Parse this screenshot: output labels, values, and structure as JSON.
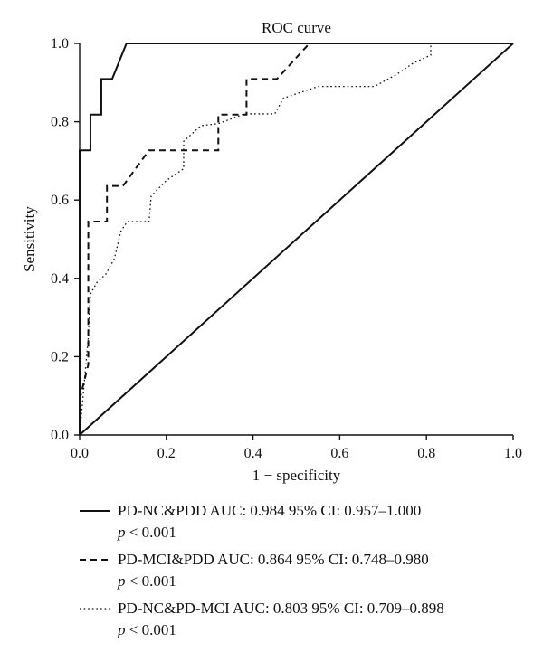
{
  "chart_data": {
    "type": "line",
    "title": "ROC curve",
    "xlabel": "1 − specificity",
    "ylabel": "Sensitivity",
    "xlim": [
      0.0,
      1.0
    ],
    "ylim": [
      0.0,
      1.0
    ],
    "x_ticks": [
      "0.0",
      "0.2",
      "0.4",
      "0.6",
      "0.8",
      "1.0"
    ],
    "y_ticks": [
      "0.0",
      "0.2",
      "0.4",
      "0.6",
      "0.8",
      "1.0"
    ],
    "grid": false,
    "legend_position": "bottom",
    "series": [
      {
        "name": "PD-NC&PDD AUC: 0.984 95% CI: 0.957–1.000",
        "note": "p < 0.001",
        "style": "solid",
        "x": [
          0.0,
          0.0,
          0.025,
          0.025,
          0.05,
          0.05,
          0.075,
          0.108,
          1.0
        ],
        "y": [
          0.0,
          0.727,
          0.727,
          0.818,
          0.818,
          0.909,
          0.909,
          1.0,
          1.0
        ]
      },
      {
        "name": "PD-MCI&PDD AUC: 0.864 95% CI: 0.748–0.980",
        "note": "p < 0.001",
        "style": "dashed",
        "x": [
          0.0,
          0.02,
          0.02,
          0.063,
          0.063,
          0.1,
          0.16,
          0.32,
          0.32,
          0.385,
          0.385,
          0.455,
          0.53,
          0.55,
          1.0
        ],
        "y": [
          0.09,
          0.18,
          0.545,
          0.545,
          0.636,
          0.636,
          0.727,
          0.727,
          0.818,
          0.818,
          0.909,
          0.909,
          1.0,
          1.0,
          1.0
        ]
      },
      {
        "name": "PD-NC&PD-MCI AUC: 0.803 95% CI: 0.709–0.898",
        "note": "p < 0.001",
        "style": "dotted",
        "x": [
          0.0,
          0.02,
          0.025,
          0.04,
          0.06,
          0.08,
          0.095,
          0.11,
          0.16,
          0.165,
          0.2,
          0.24,
          0.24,
          0.28,
          0.32,
          0.38,
          0.45,
          0.47,
          0.55,
          0.68,
          0.73,
          0.77,
          0.81,
          0.81,
          1.0
        ],
        "y": [
          0.0,
          0.25,
          0.36,
          0.39,
          0.41,
          0.45,
          0.52,
          0.545,
          0.545,
          0.61,
          0.65,
          0.68,
          0.75,
          0.79,
          0.795,
          0.82,
          0.82,
          0.86,
          0.89,
          0.89,
          0.92,
          0.95,
          0.97,
          1.0,
          1.0
        ]
      },
      {
        "name": "reference",
        "style": "solid",
        "x": [
          0.0,
          1.0
        ],
        "y": [
          0.0,
          1.0
        ]
      }
    ]
  },
  "legend": [
    {
      "style": "solid",
      "label": "PD-NC&PDD AUC: 0.984 95% CI: 0.957–1.000",
      "p_symbol": "p",
      "p_rest": " < 0.001"
    },
    {
      "style": "dashed",
      "label": "PD-MCI&PDD AUC: 0.864 95% CI: 0.748–0.980",
      "p_symbol": "p",
      "p_rest": " < 0.001"
    },
    {
      "style": "dotted",
      "label": "PD-NC&PD-MCI AUC: 0.803 95% CI: 0.709–0.898",
      "p_symbol": "p",
      "p_rest": " < 0.001"
    }
  ]
}
